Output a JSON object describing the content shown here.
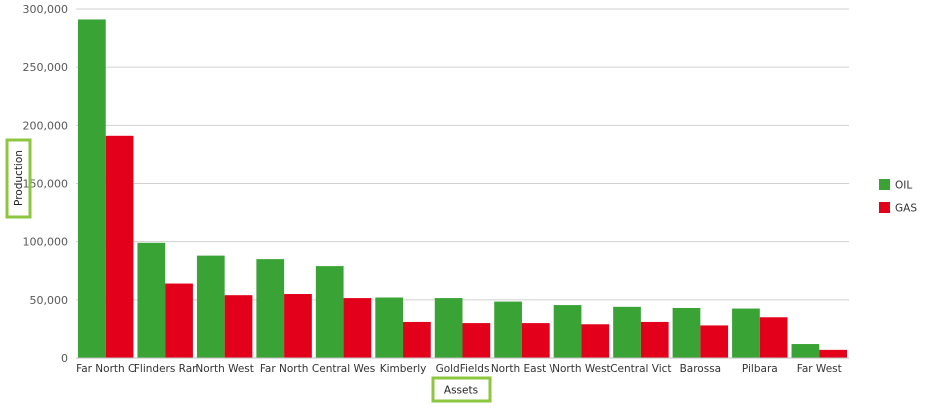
{
  "colors": {
    "oil": "#3aa335",
    "gas": "#e2001a",
    "highlight": "#8dc63f"
  },
  "chart_data": {
    "type": "bar",
    "xlabel": "Assets",
    "ylabel": "Production",
    "ylim": [
      0,
      300000
    ],
    "yticks": [
      0,
      50000,
      100000,
      150000,
      200000,
      250000,
      300000
    ],
    "ytick_labels": [
      "0",
      "50,000",
      "100,000",
      "150,000",
      "200,000",
      "250,000",
      "300,000"
    ],
    "grid": true,
    "legend_position": "right",
    "categories": [
      "Far North C",
      "Flinders Rar",
      "North West",
      "Far North",
      "Central Wes",
      "Kimberly",
      "GoldFields",
      "North East \\",
      "North West",
      "Central Vict",
      "Barossa",
      "Pilbara",
      "Far West"
    ],
    "series": [
      {
        "name": "OIL",
        "color": "#3aa335",
        "values": [
          291000,
          99000,
          88000,
          85000,
          79000,
          52000,
          51500,
          48500,
          45500,
          44000,
          43000,
          42500,
          12000
        ]
      },
      {
        "name": "GAS",
        "color": "#e2001a",
        "values": [
          191000,
          64000,
          54000,
          55000,
          51500,
          31000,
          30000,
          30000,
          29000,
          31000,
          28000,
          35000,
          7000
        ]
      }
    ]
  }
}
